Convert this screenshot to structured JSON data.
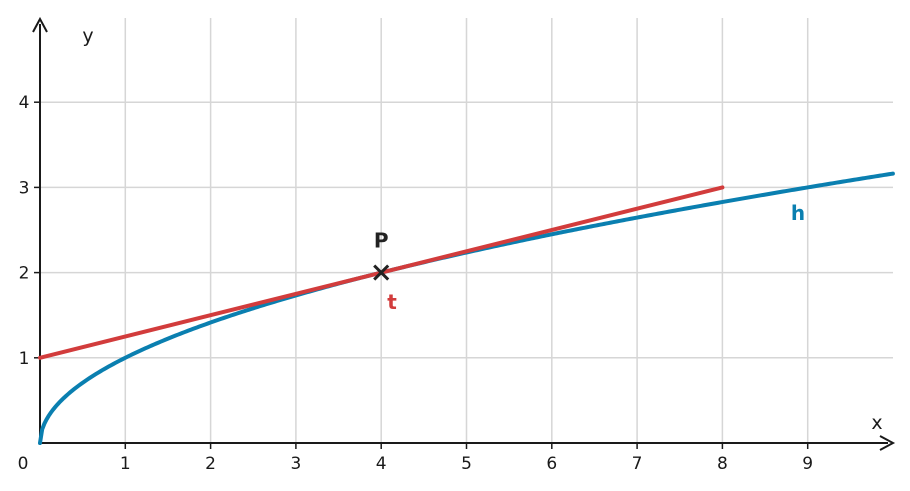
{
  "chart_data": {
    "type": "line",
    "title": "",
    "xlabel": "x",
    "ylabel": "y",
    "xlim": [
      0,
      10
    ],
    "ylim": [
      0,
      5
    ],
    "grid": true,
    "origin_label": "0",
    "x_ticks": [
      1,
      2,
      3,
      4,
      5,
      6,
      7,
      8,
      9
    ],
    "y_ticks": [
      1,
      2,
      3,
      4
    ],
    "series": [
      {
        "name": "h",
        "function": "sqrt(x)",
        "color": "#0a7fb0",
        "x": [
          0,
          0.25,
          0.5,
          1,
          2,
          3,
          4,
          5,
          6,
          7,
          8,
          9,
          10
        ],
        "y": [
          0,
          0.5,
          0.707,
          1,
          1.414,
          1.732,
          2,
          2.236,
          2.449,
          2.646,
          2.828,
          3,
          3.162
        ]
      },
      {
        "name": "t",
        "function": "0.25x + 1",
        "color": "#d23c3c",
        "x": [
          0,
          8
        ],
        "y": [
          1,
          3
        ]
      }
    ],
    "points": [
      {
        "label": "P",
        "x": 4,
        "y": 2,
        "marker": "cross",
        "color": "#222222"
      }
    ]
  }
}
